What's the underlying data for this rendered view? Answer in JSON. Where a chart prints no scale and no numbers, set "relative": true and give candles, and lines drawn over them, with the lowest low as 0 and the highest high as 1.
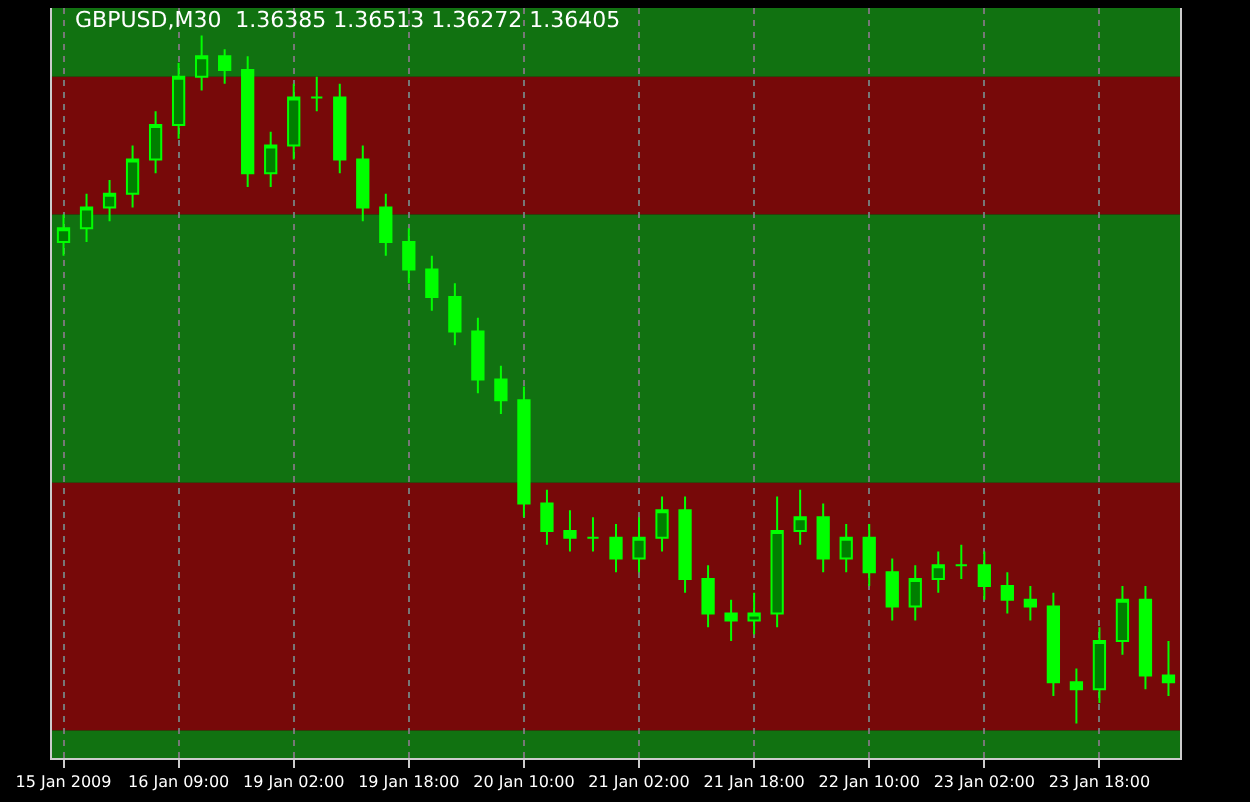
{
  "chart_data": {
    "type": "candlestick",
    "title": "GBPUSD,M30  1.36385 1.36513 1.36272 1.36405",
    "relative": true,
    "grid": "x",
    "categories": [
      "15 Jan 2009",
      null,
      null,
      null,
      null,
      "16 Jan 09:00",
      null,
      null,
      null,
      null,
      "19 Jan 02:00",
      null,
      null,
      null,
      null,
      "19 Jan 18:00",
      null,
      null,
      null,
      null,
      "20 Jan 10:00",
      null,
      null,
      null,
      null,
      "21 Jan 02:00",
      null,
      null,
      null,
      null,
      "21 Jan 18:00",
      null,
      null,
      null,
      null,
      "22 Jan 10:00",
      null,
      null,
      null,
      null,
      "23 Jan 02:00",
      null,
      null,
      null,
      null,
      "23 Jan 18:00",
      null,
      null,
      null
    ],
    "series": [
      {
        "color": "#00ff00",
        "ohlc": [
          [
            0.7,
            0.74,
            0.68,
            0.72
          ],
          [
            0.72,
            0.77,
            0.7,
            0.75
          ],
          [
            0.75,
            0.79,
            0.73,
            0.77
          ],
          [
            0.77,
            0.84,
            0.75,
            0.82
          ],
          [
            0.82,
            0.89,
            0.8,
            0.87
          ],
          [
            0.87,
            0.96,
            0.85,
            0.94
          ],
          [
            0.94,
            1.0,
            0.92,
            0.97
          ],
          [
            0.97,
            0.98,
            0.93,
            0.95
          ],
          [
            0.95,
            0.97,
            0.78,
            0.8
          ],
          [
            0.8,
            0.86,
            0.78,
            0.84
          ],
          [
            0.84,
            0.93,
            0.82,
            0.91
          ],
          [
            0.91,
            0.94,
            0.89,
            0.91
          ],
          [
            0.91,
            0.93,
            0.8,
            0.82
          ],
          [
            0.82,
            0.84,
            0.73,
            0.75
          ],
          [
            0.75,
            0.77,
            0.68,
            0.7
          ],
          [
            0.7,
            0.72,
            0.64,
            0.66
          ],
          [
            0.66,
            0.68,
            0.6,
            0.62
          ],
          [
            0.62,
            0.64,
            0.55,
            0.57
          ],
          [
            0.57,
            0.59,
            0.48,
            0.5
          ],
          [
            0.5,
            0.52,
            0.45,
            0.47
          ],
          [
            0.47,
            0.49,
            0.3,
            0.32
          ],
          [
            0.32,
            0.34,
            0.26,
            0.28
          ],
          [
            0.28,
            0.31,
            0.25,
            0.27
          ],
          [
            0.27,
            0.3,
            0.25,
            0.27
          ],
          [
            0.27,
            0.29,
            0.22,
            0.24
          ],
          [
            0.24,
            0.3,
            0.22,
            0.27
          ],
          [
            0.27,
            0.33,
            0.25,
            0.31
          ],
          [
            0.31,
            0.33,
            0.19,
            0.21
          ],
          [
            0.21,
            0.23,
            0.14,
            0.16
          ],
          [
            0.16,
            0.18,
            0.12,
            0.15
          ],
          [
            0.15,
            0.19,
            0.13,
            0.16
          ],
          [
            0.16,
            0.33,
            0.14,
            0.28
          ],
          [
            0.28,
            0.34,
            0.26,
            0.3
          ],
          [
            0.3,
            0.32,
            0.22,
            0.24
          ],
          [
            0.24,
            0.29,
            0.22,
            0.27
          ],
          [
            0.27,
            0.29,
            0.2,
            0.22
          ],
          [
            0.22,
            0.24,
            0.15,
            0.17
          ],
          [
            0.17,
            0.23,
            0.15,
            0.21
          ],
          [
            0.21,
            0.25,
            0.19,
            0.23
          ],
          [
            0.23,
            0.26,
            0.21,
            0.23
          ],
          [
            0.23,
            0.25,
            0.18,
            0.2
          ],
          [
            0.2,
            0.22,
            0.16,
            0.18
          ],
          [
            0.18,
            0.2,
            0.15,
            0.17
          ],
          [
            0.17,
            0.19,
            0.04,
            0.06
          ],
          [
            0.06,
            0.08,
            0.0,
            0.05
          ],
          [
            0.05,
            0.14,
            0.03,
            0.12
          ],
          [
            0.12,
            0.2,
            0.1,
            0.18
          ],
          [
            0.18,
            0.2,
            0.05,
            0.07
          ],
          [
            0.07,
            0.12,
            0.04,
            0.06
          ]
        ]
      }
    ],
    "bands": [
      {
        "axis": "y",
        "from": 0.94,
        "to": 1.04,
        "color": "#1fd01f"
      },
      {
        "axis": "y",
        "from": 0.74,
        "to": 0.94,
        "color": "#d81010"
      },
      {
        "axis": "y",
        "from": 0.35,
        "to": 0.74,
        "color": "#1fd01f"
      },
      {
        "axis": "y",
        "from": -0.01,
        "to": 0.35,
        "color": "#d81010"
      },
      {
        "axis": "y",
        "from": -0.05,
        "to": -0.01,
        "color": "#1fd01f"
      }
    ]
  }
}
